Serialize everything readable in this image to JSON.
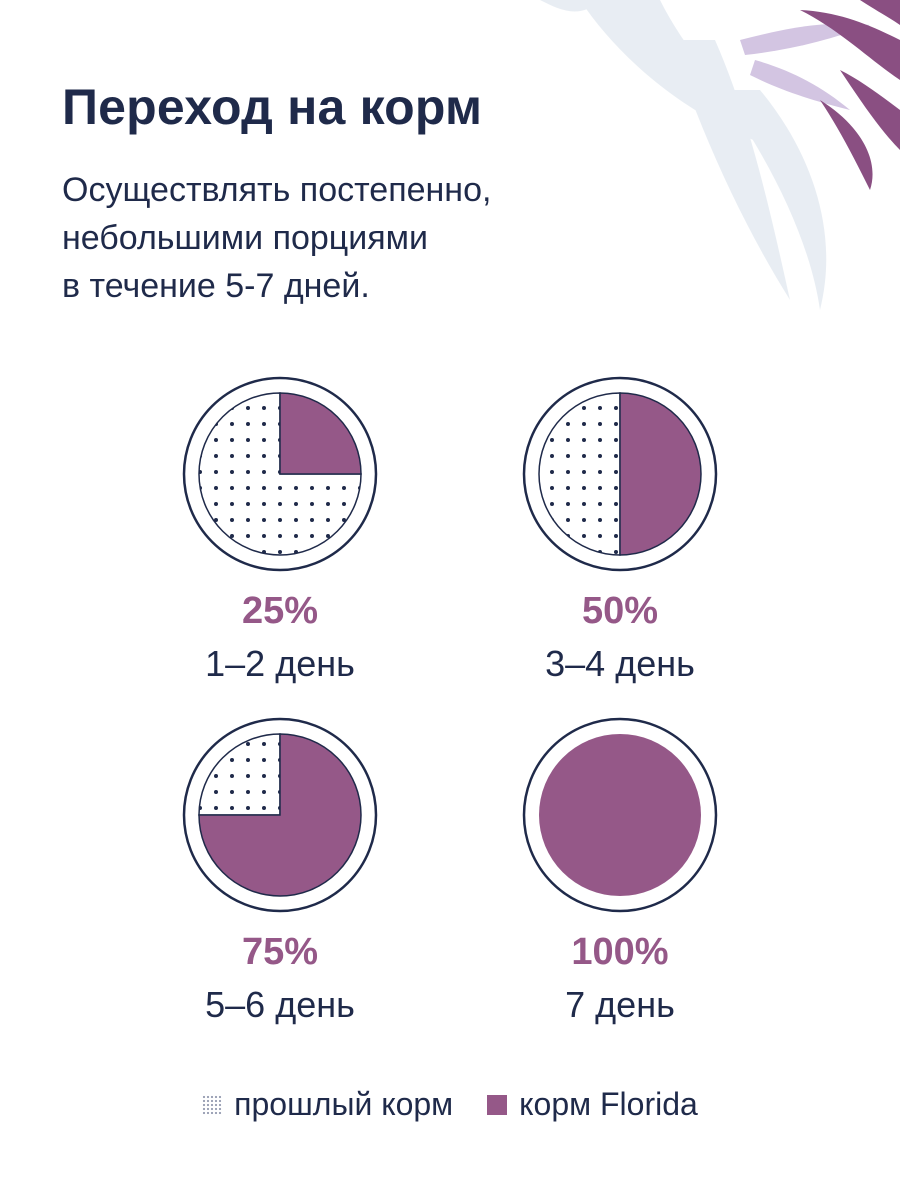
{
  "header": {
    "title": "Переход на корм",
    "subtitle_lines": [
      "Осуществлять постепенно,",
      "небольшими порциями",
      "в течение 5-7 дней."
    ]
  },
  "colors": {
    "new_food": "#955888",
    "old_food_dots": "#1f2a4a",
    "text": "#1f2a4a",
    "decor_leaf": "#8a4f82"
  },
  "chart_data": {
    "type": "pie",
    "unit": "%",
    "series": [
      {
        "name": "прошлый корм",
        "pattern": "dots"
      },
      {
        "name": "корм Florida",
        "pattern": "solid"
      }
    ],
    "charts": [
      {
        "value_label": "25%",
        "day_label": "1–2 день",
        "new_food_pct": 25,
        "old_food_pct": 75
      },
      {
        "value_label": "50%",
        "day_label": "3–4 день",
        "new_food_pct": 50,
        "old_food_pct": 50
      },
      {
        "value_label": "75%",
        "day_label": "5–6 день",
        "new_food_pct": 75,
        "old_food_pct": 25
      },
      {
        "value_label": "100%",
        "day_label": "7 день",
        "new_food_pct": 100,
        "old_food_pct": 0
      }
    ]
  },
  "legend": {
    "old_label": "прошлый корм",
    "new_label": "корм Florida"
  }
}
